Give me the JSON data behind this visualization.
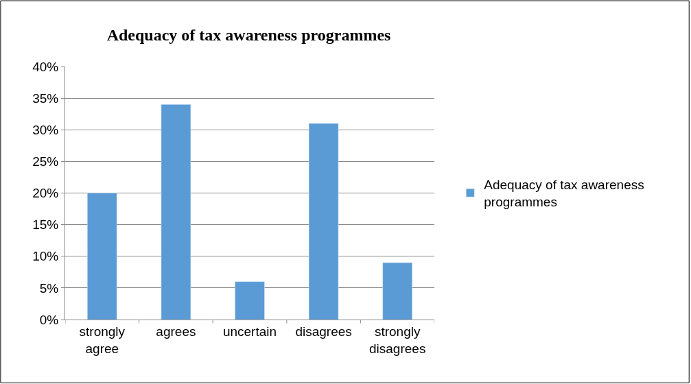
{
  "chart_data": {
    "type": "bar",
    "title": "Adequacy of tax awareness programmes",
    "categories": [
      "strongly agree",
      "agrees",
      "uncertain",
      "disagrees",
      "strongly disagrees"
    ],
    "series": [
      {
        "name": "Adequacy of tax awareness programmes",
        "color": "#5b9bd5",
        "values": [
          20,
          34,
          6,
          31,
          9
        ]
      }
    ],
    "ylim": [
      0,
      40
    ],
    "yticks": [
      {
        "value": 0,
        "label": "0%"
      },
      {
        "value": 5,
        "label": "5%"
      },
      {
        "value": 10,
        "label": "10%"
      },
      {
        "value": 15,
        "label": "15%"
      },
      {
        "value": 20,
        "label": "20%"
      },
      {
        "value": 25,
        "label": "25%"
      },
      {
        "value": 30,
        "label": "30%"
      },
      {
        "value": 35,
        "label": "35%"
      },
      {
        "value": 40,
        "label": "40%"
      }
    ],
    "grid": "y",
    "legend": "right"
  }
}
